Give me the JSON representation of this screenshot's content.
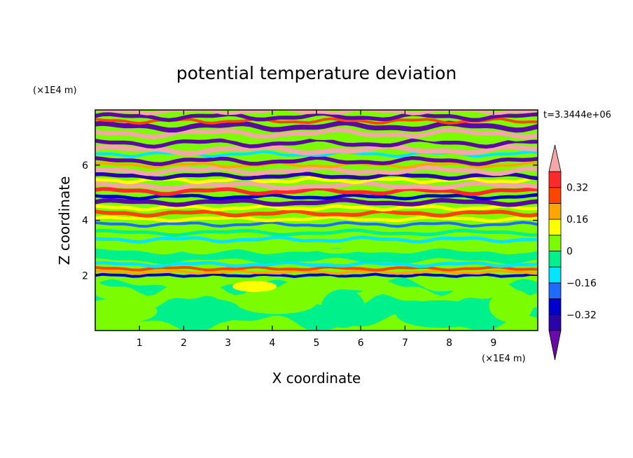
{
  "chart_data": {
    "type": "heatmap",
    "title": "potential temperature deviation",
    "xlabel": "X coordinate",
    "ylabel": "Z coordinate",
    "x_unit": "(×1E4 m)",
    "y_unit": "(×1E4 m)",
    "time_label": "t=3.3444e+06",
    "xlim": [
      0,
      10
    ],
    "ylim": [
      0,
      8
    ],
    "x_ticks": [
      1,
      2,
      3,
      4,
      5,
      6,
      7,
      8,
      9
    ],
    "y_ticks": [
      2,
      4,
      6
    ],
    "grid": false,
    "colorbar": {
      "placement": "right",
      "extend": "both",
      "levels": [
        -0.4,
        -0.32,
        -0.24,
        -0.16,
        -0.08,
        0,
        0.08,
        0.16,
        0.24,
        0.32,
        0.4
      ],
      "tick_labels": [
        "0.32",
        "0.16",
        "0",
        "−0.16",
        "−0.32"
      ],
      "tick_values": [
        0.32,
        0.16,
        0,
        -0.16,
        -0.32
      ],
      "colors_low_to_high": [
        "#5a0a9e",
        "#2a04a8",
        "#0000cd",
        "#1e6bff",
        "#00e5ff",
        "#00f08c",
        "#7cfc00",
        "#ffff00",
        "#ffa500",
        "#ff4500",
        "#ff2a2a",
        "#f4a7a7"
      ],
      "under_color": "#6a0aa8",
      "over_color": "#f4a7a7"
    },
    "bands_description": [
      {
        "z_range": [
          0,
          2
        ],
        "dominant_values": [
          0,
          0.08
        ]
      },
      {
        "z_range": [
          2,
          4.5
        ],
        "dominant_values": [
          -0.16,
          0,
          0.08,
          0.16
        ]
      },
      {
        "z_range": [
          4.5,
          8
        ],
        "dominant_values": [
          -0.4,
          -0.32,
          0.32,
          0.4
        ]
      }
    ]
  }
}
